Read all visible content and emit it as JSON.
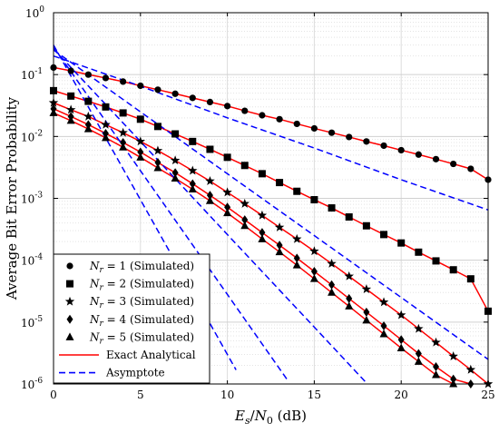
{
  "chart_data": {
    "type": "line",
    "xlabel": "E_s/N_0 (dB)",
    "ylabel": "Average Bit Error Probability",
    "xlim": [
      0,
      25
    ],
    "ylim": [
      1e-06,
      1
    ],
    "yscale": "log",
    "grid": true,
    "legend_position": "bottom-left",
    "x_ticks": [
      0,
      5,
      10,
      15,
      20,
      25
    ],
    "y_ticks": [
      {
        "value": 1,
        "base": "10",
        "exp": "0"
      },
      {
        "value": 0.1,
        "base": "10",
        "exp": "-1"
      },
      {
        "value": 0.01,
        "base": "10",
        "exp": "-2"
      },
      {
        "value": 0.001,
        "base": "10",
        "exp": "-3"
      },
      {
        "value": 0.0001,
        "base": "10",
        "exp": "-4"
      },
      {
        "value": 1e-05,
        "base": "10",
        "exp": "-5"
      },
      {
        "value": 1e-06,
        "base": "10",
        "exp": "-6"
      }
    ],
    "x": [
      0,
      1,
      2,
      3,
      4,
      5,
      6,
      7,
      8,
      9,
      10,
      11,
      12,
      13,
      14,
      15,
      16,
      17,
      18,
      19,
      20,
      21,
      22,
      23,
      24,
      25
    ],
    "series": [
      {
        "name": "N_r = 1 (Simulated)",
        "marker": "circle",
        "values": [
          0.13,
          0.115,
          0.1,
          0.088,
          0.077,
          0.066,
          0.057,
          0.049,
          0.042,
          0.036,
          0.031,
          0.026,
          0.022,
          0.019,
          0.016,
          0.0135,
          0.0115,
          0.0098,
          0.0083,
          0.0071,
          0.006,
          0.0051,
          0.0043,
          0.0036,
          0.003,
          0.002
        ]
      },
      {
        "name": "N_r = 2 (Simulated)",
        "marker": "square",
        "values": [
          0.055,
          0.045,
          0.037,
          0.03,
          0.024,
          0.019,
          0.0145,
          0.011,
          0.0083,
          0.0062,
          0.0046,
          0.0034,
          0.0025,
          0.0018,
          0.0013,
          0.00095,
          0.0007,
          0.0005,
          0.00036,
          0.00026,
          0.00019,
          0.000135,
          9.75e-05,
          7e-05,
          5e-05,
          1.5e-05
        ]
      },
      {
        "name": "N_r = 3 (Simulated)",
        "marker": "star",
        "values": [
          0.035,
          0.027,
          0.021,
          0.0155,
          0.0115,
          0.0083,
          0.0059,
          0.0041,
          0.0028,
          0.0019,
          0.00125,
          0.00082,
          0.00053,
          0.00034,
          0.00022,
          0.00014,
          8.8e-05,
          5.5e-05,
          3.4e-05,
          2.1e-05,
          1.3e-05,
          7.8e-06,
          4.7e-06,
          2.8e-06,
          1.7e-06,
          1e-06
        ]
      },
      {
        "name": "N_r = 4 (Simulated)",
        "marker": "diamond",
        "values": [
          0.028,
          0.021,
          0.0155,
          0.0112,
          0.008,
          0.0056,
          0.0038,
          0.0026,
          0.00172,
          0.00112,
          0.00072,
          0.00045,
          0.00028,
          0.000175,
          0.000108,
          6.6e-05,
          4e-05,
          2.4e-05,
          1.45e-05,
          8.7e-06,
          5.2e-06,
          3.1e-06,
          1.9e-06,
          1.2e-06,
          1e-06,
          null
        ]
      },
      {
        "name": "N_r = 5 (Simulated)",
        "marker": "triangle",
        "values": [
          0.024,
          0.018,
          0.0132,
          0.0095,
          0.0067,
          0.0046,
          0.0031,
          0.0021,
          0.0014,
          0.00091,
          0.00058,
          0.00036,
          0.00022,
          0.000136,
          8.3e-05,
          5e-05,
          3e-05,
          1.8e-05,
          1.07e-05,
          6.4e-06,
          3.8e-06,
          2.3e-06,
          1.4e-06,
          1e-06,
          null,
          null
        ]
      },
      {
        "name": "Exact Analytical",
        "style": "solid",
        "color": "#ff0000"
      },
      {
        "name": "Asymptote",
        "style": "dashed",
        "color": "#0000ff"
      }
    ],
    "asymptote_curves": [
      {
        "x": [
          0,
          5,
          10,
          15,
          20,
          25
        ],
        "values": [
          0.2,
          0.065,
          0.02,
          0.0065,
          0.002,
          0.00065
        ]
      },
      {
        "x": [
          0,
          5,
          10,
          15,
          20,
          25
        ],
        "values": [
          0.25,
          0.025,
          0.0025,
          0.00025,
          2.5e-05,
          2.5e-06
        ]
      },
      {
        "x": [
          0,
          5,
          10,
          15,
          20,
          25
        ],
        "values": [
          0.26,
          0.0083,
          0.00026,
          8.3e-06,
          2.6e-07,
          8.3e-09
        ]
      },
      {
        "x": [
          0,
          5,
          10,
          15,
          20,
          25
        ],
        "values": [
          0.28,
          0.0028,
          2.8e-05,
          2.8e-07,
          2.8e-09,
          2.8e-11
        ]
      },
      {
        "x": [
          0,
          5,
          10,
          15,
          20,
          25
        ],
        "values": [
          0.3,
          0.00095,
          3e-06,
          9.5e-09,
          3e-11,
          9.5e-14
        ]
      }
    ]
  },
  "legend": {
    "entries": [
      {
        "marker": "circle",
        "prefix": "N",
        "sub": "r",
        "rest": " = 1 (Simulated)"
      },
      {
        "marker": "square",
        "prefix": "N",
        "sub": "r",
        "rest": " = 2 (Simulated)"
      },
      {
        "marker": "star",
        "prefix": "N",
        "sub": "r",
        "rest": " = 3 (Simulated)"
      },
      {
        "marker": "diamond",
        "prefix": "N",
        "sub": "r",
        "rest": " = 4 (Simulated)"
      },
      {
        "marker": "triangle",
        "prefix": "N",
        "sub": "r",
        "rest": " = 5 (Simulated)"
      },
      {
        "line": "solid",
        "color": "#ff0000",
        "label": "Exact Analytical"
      },
      {
        "line": "dashed",
        "color": "#0000ff",
        "label": "Asymptote"
      }
    ]
  },
  "xlabel_parts": {
    "e": "E",
    "e_sub": "s",
    "slash": "/",
    "n": "N",
    "n_sub": "0",
    "unit": " (dB)"
  }
}
